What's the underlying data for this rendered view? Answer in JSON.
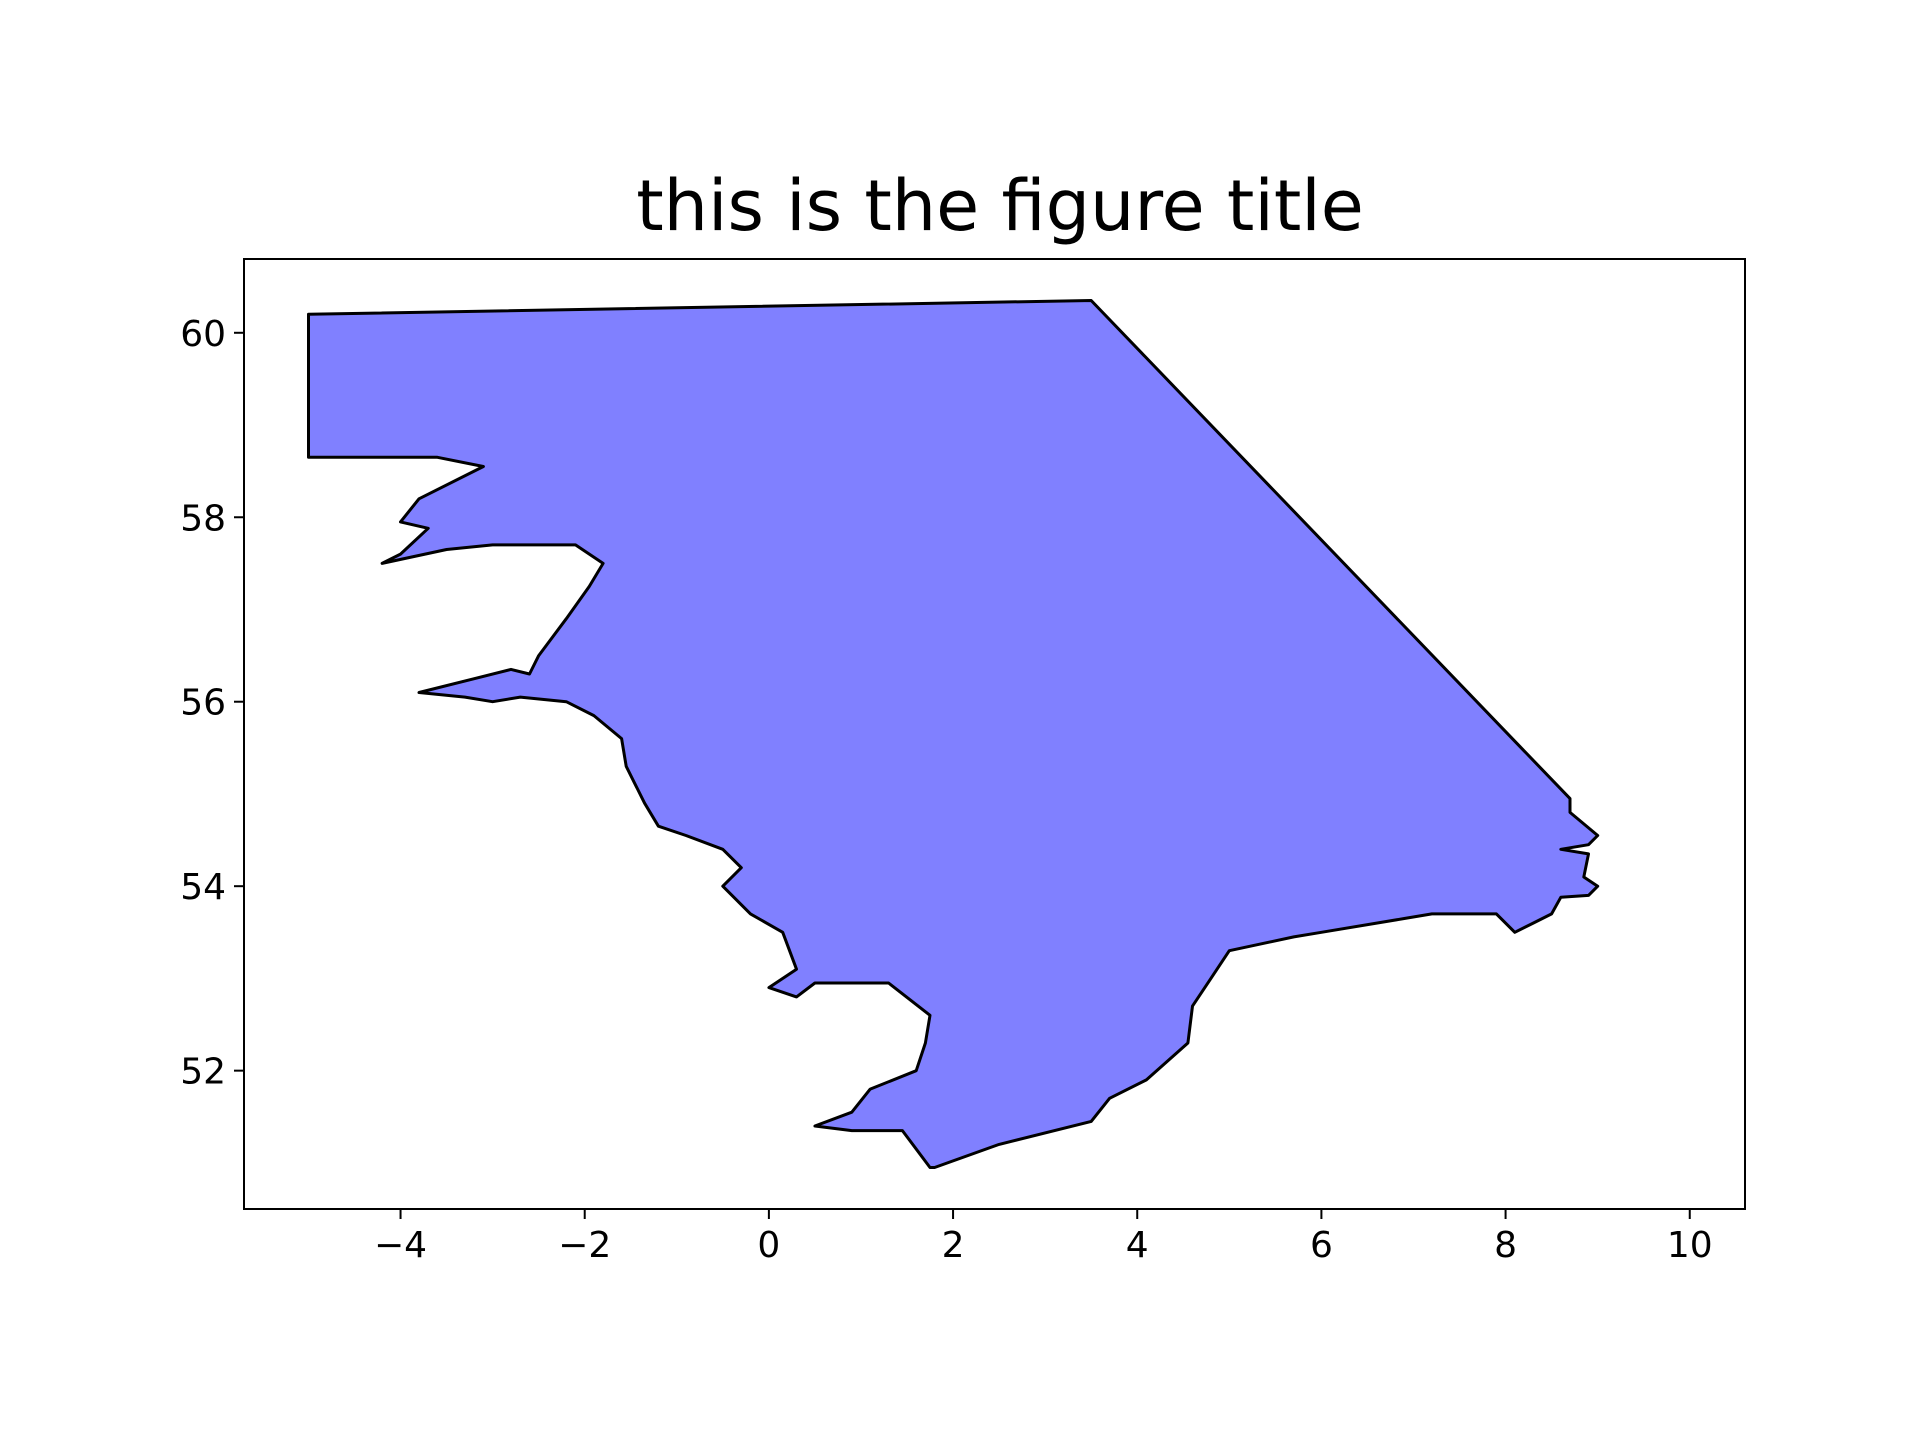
{
  "chart_data": {
    "type": "map",
    "title": "this is the figure title",
    "xlabel": "",
    "ylabel": "",
    "xlim": [
      -5.7,
      10.6
    ],
    "ylim": [
      50.5,
      60.8
    ],
    "x_ticks": [
      -4,
      -2,
      0,
      2,
      4,
      6,
      8,
      10
    ],
    "x_tick_labels": [
      "−4",
      "−2",
      "0",
      "2",
      "4",
      "6",
      "8",
      "10"
    ],
    "y_ticks": [
      52,
      54,
      56,
      58,
      60
    ],
    "y_tick_labels": [
      "52",
      "54",
      "56",
      "58",
      "60"
    ],
    "grid": false,
    "region": {
      "fill": "#8080ff",
      "edge": "#000000",
      "outline_lonlat": [
        [
          -5.0,
          60.2
        ],
        [
          3.5,
          60.35
        ],
        [
          8.7,
          54.95
        ],
        [
          8.7,
          54.8
        ],
        [
          9.0,
          54.55
        ],
        [
          8.9,
          54.45
        ],
        [
          8.6,
          54.4
        ],
        [
          8.9,
          54.35
        ],
        [
          8.85,
          54.1
        ],
        [
          9.0,
          54.0
        ],
        [
          8.9,
          53.9
        ],
        [
          8.6,
          53.88
        ],
        [
          8.5,
          53.7
        ],
        [
          8.3,
          53.6
        ],
        [
          8.1,
          53.5
        ],
        [
          7.9,
          53.7
        ],
        [
          7.2,
          53.7
        ],
        [
          6.9,
          53.65
        ],
        [
          6.0,
          53.5
        ],
        [
          5.7,
          53.45
        ],
        [
          5.0,
          53.3
        ],
        [
          4.8,
          53.0
        ],
        [
          4.6,
          52.7
        ],
        [
          4.55,
          52.3
        ],
        [
          4.1,
          51.9
        ],
        [
          3.7,
          51.7
        ],
        [
          3.5,
          51.45
        ],
        [
          2.5,
          51.2
        ],
        [
          1.8,
          50.95
        ],
        [
          1.75,
          50.95
        ],
        [
          1.45,
          51.35
        ],
        [
          0.9,
          51.35
        ],
        [
          0.5,
          51.4
        ],
        [
          0.9,
          51.55
        ],
        [
          1.1,
          51.8
        ],
        [
          1.6,
          52.0
        ],
        [
          1.7,
          52.3
        ],
        [
          1.75,
          52.6
        ],
        [
          1.3,
          52.95
        ],
        [
          0.5,
          52.95
        ],
        [
          0.3,
          52.8
        ],
        [
          0.0,
          52.9
        ],
        [
          0.3,
          53.1
        ],
        [
          0.15,
          53.5
        ],
        [
          -0.2,
          53.7
        ],
        [
          -0.5,
          54.0
        ],
        [
          -0.3,
          54.2
        ],
        [
          -0.5,
          54.4
        ],
        [
          -0.9,
          54.55
        ],
        [
          -1.2,
          54.65
        ],
        [
          -1.35,
          54.9
        ],
        [
          -1.55,
          55.3
        ],
        [
          -1.6,
          55.6
        ],
        [
          -1.9,
          55.85
        ],
        [
          -2.2,
          56.0
        ],
        [
          -2.7,
          56.05
        ],
        [
          -3.0,
          56.0
        ],
        [
          -3.3,
          56.05
        ],
        [
          -3.8,
          56.1
        ],
        [
          -3.2,
          56.25
        ],
        [
          -2.8,
          56.35
        ],
        [
          -2.6,
          56.3
        ],
        [
          -2.5,
          56.5
        ],
        [
          -2.2,
          56.9
        ],
        [
          -1.95,
          57.25
        ],
        [
          -1.8,
          57.5
        ],
        [
          -2.1,
          57.7
        ],
        [
          -3.0,
          57.7
        ],
        [
          -3.5,
          57.65
        ],
        [
          -4.2,
          57.5
        ],
        [
          -4.0,
          57.6
        ],
        [
          -3.7,
          57.88
        ],
        [
          -4.0,
          57.95
        ],
        [
          -3.8,
          58.2
        ],
        [
          -3.1,
          58.55
        ],
        [
          -3.6,
          58.65
        ],
        [
          -5.0,
          58.65
        ],
        [
          -5.0,
          60.2
        ]
      ]
    }
  }
}
